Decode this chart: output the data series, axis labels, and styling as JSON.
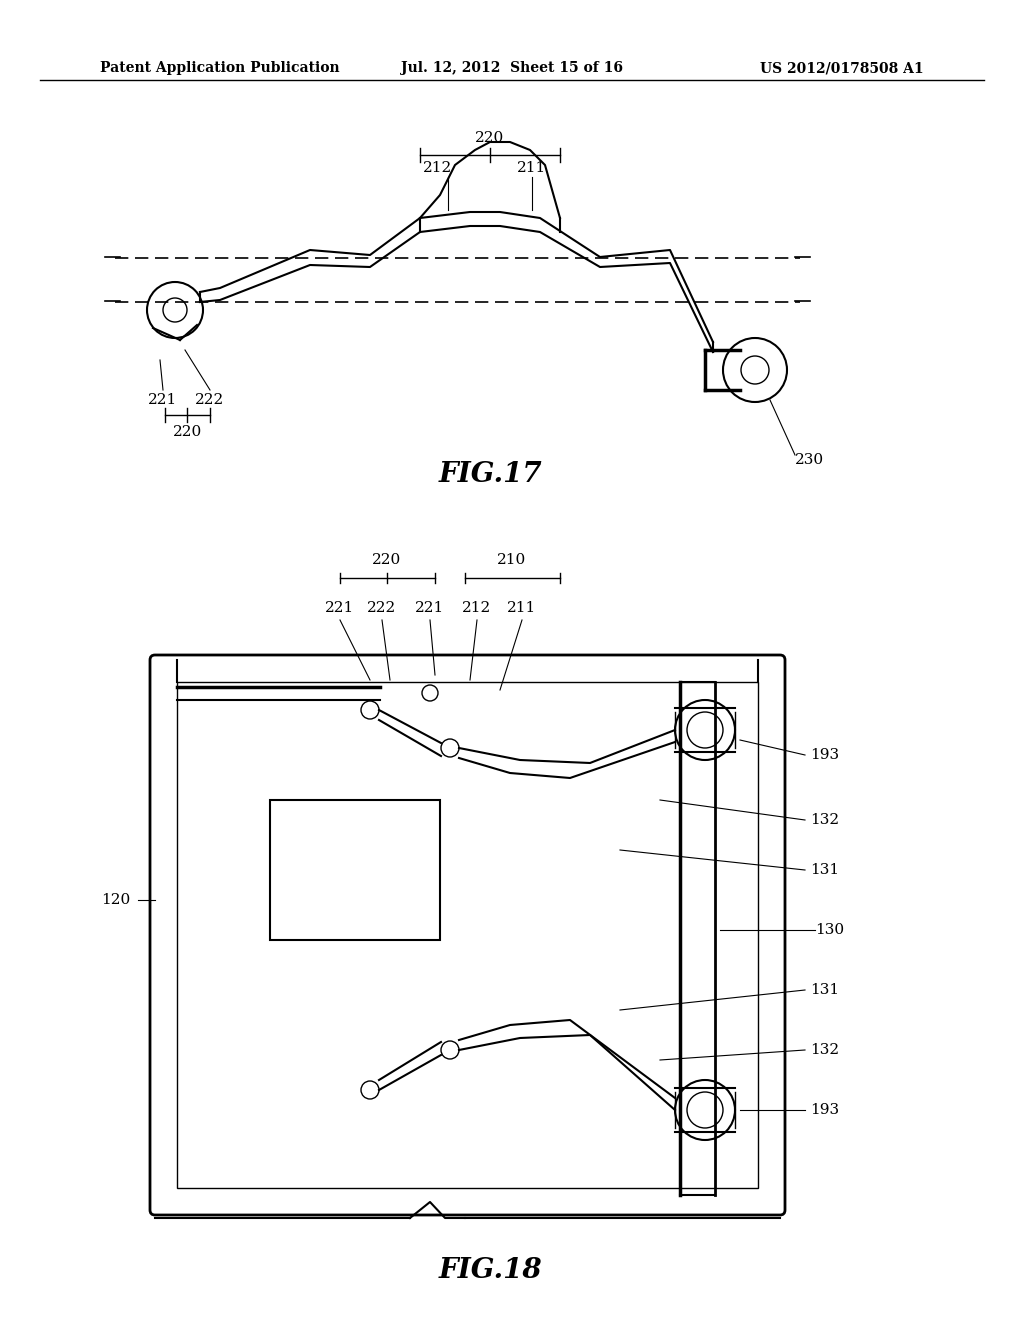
{
  "bg_color": "#ffffff",
  "line_color": "#000000",
  "header_left": "Patent Application Publication",
  "header_center": "Jul. 12, 2012  Sheet 15 of 16",
  "header_right": "US 2012/0178508 A1",
  "fig17_label": "FIG.17",
  "fig18_label": "FIG.18"
}
